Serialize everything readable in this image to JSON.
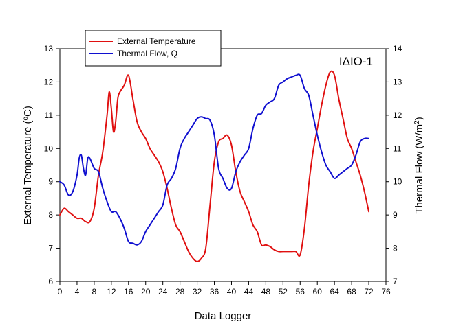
{
  "chart_data": {
    "type": "line",
    "title": "",
    "annotation": "IΔIO-1",
    "xlabel": "Data Logger",
    "ylabel_left": "External Temperature (",
    "ylabel_left_sup": "o",
    "ylabel_left_tail": "C)",
    "ylabel_right": "Thermal Flow (W/m",
    "ylabel_right_sup": "2",
    "ylabel_right_tail": ")",
    "xlim": [
      0,
      76
    ],
    "xticks": [
      0,
      4,
      8,
      12,
      16,
      20,
      24,
      28,
      32,
      36,
      40,
      44,
      48,
      52,
      56,
      60,
      64,
      68,
      72,
      76
    ],
    "ylim_left": [
      6,
      13
    ],
    "yticks_left": [
      6,
      7,
      8,
      9,
      10,
      11,
      12,
      13
    ],
    "ylim_right": [
      7,
      14
    ],
    "yticks_right": [
      7,
      8,
      9,
      10,
      11,
      12,
      13,
      14
    ],
    "grid": false,
    "legend_position": "top-left",
    "series": [
      {
        "name": "External Temperature",
        "axis": "left",
        "color": "#e01010",
        "x": [
          0,
          1,
          2,
          3,
          4,
          5,
          6,
          7,
          8,
          9,
          10,
          11,
          11.5,
          12,
          12.5,
          13,
          13.5,
          14,
          15,
          16,
          17,
          18,
          19,
          20,
          21,
          22,
          23,
          24,
          25,
          26,
          27,
          28,
          29,
          30,
          31,
          32,
          33,
          34,
          35,
          36,
          37,
          38,
          39,
          40,
          41,
          42,
          43,
          44,
          45,
          46,
          47,
          48,
          49,
          50,
          51,
          52,
          53,
          54,
          55,
          56,
          57,
          58,
          59,
          60,
          61,
          62,
          63,
          64,
          65,
          66,
          67,
          68,
          69,
          70,
          71,
          72
        ],
        "y": [
          8.0,
          8.2,
          8.1,
          8.0,
          7.9,
          7.9,
          7.8,
          7.8,
          8.2,
          9.2,
          9.9,
          11.0,
          11.7,
          11.2,
          10.5,
          10.8,
          11.5,
          11.7,
          11.9,
          12.2,
          11.5,
          10.8,
          10.5,
          10.3,
          10.0,
          9.8,
          9.6,
          9.3,
          8.8,
          8.2,
          7.7,
          7.5,
          7.2,
          6.9,
          6.7,
          6.6,
          6.7,
          7.0,
          8.3,
          9.6,
          10.2,
          10.3,
          10.4,
          10.1,
          9.3,
          8.7,
          8.4,
          8.1,
          7.7,
          7.5,
          7.1,
          7.1,
          7.05,
          6.95,
          6.9,
          6.9,
          6.9,
          6.9,
          6.9,
          6.8,
          7.6,
          8.9,
          9.9,
          10.6,
          11.3,
          11.9,
          12.3,
          12.2,
          11.5,
          10.9,
          10.3,
          10.0,
          9.6,
          9.2,
          8.7,
          8.1
        ]
      },
      {
        "name": "Thermal Flow, Q",
        "axis": "right",
        "color": "#1010d0",
        "x": [
          0,
          1,
          2,
          3,
          4,
          4.5,
          5,
          5.5,
          6,
          6.5,
          7,
          8,
          9,
          10,
          11,
          12,
          13,
          14,
          15,
          16,
          17,
          18,
          19,
          20,
          21,
          22,
          23,
          24,
          25,
          26,
          27,
          28,
          29,
          30,
          31,
          32,
          33,
          34,
          35,
          36,
          37,
          38,
          39,
          40,
          41,
          42,
          43,
          44,
          45,
          46,
          47,
          48,
          49,
          50,
          51,
          52,
          53,
          54,
          55,
          56,
          57,
          58,
          59,
          60,
          61,
          62,
          63,
          64,
          65,
          66,
          67,
          68,
          69,
          70,
          71,
          72
        ],
        "y": [
          10.0,
          9.9,
          9.6,
          9.7,
          10.2,
          10.7,
          10.8,
          10.4,
          10.2,
          10.7,
          10.7,
          10.4,
          10.3,
          9.8,
          9.4,
          9.1,
          9.1,
          8.9,
          8.6,
          8.2,
          8.15,
          8.1,
          8.2,
          8.5,
          8.7,
          8.9,
          9.1,
          9.3,
          9.9,
          10.1,
          10.4,
          11.0,
          11.3,
          11.5,
          11.7,
          11.9,
          11.95,
          11.9,
          11.85,
          11.4,
          10.4,
          10.1,
          9.8,
          9.8,
          10.3,
          10.6,
          10.8,
          11.0,
          11.6,
          12.0,
          12.05,
          12.3,
          12.4,
          12.5,
          12.9,
          13.0,
          13.1,
          13.15,
          13.2,
          13.2,
          12.8,
          12.6,
          12.0,
          11.4,
          10.9,
          10.5,
          10.3,
          10.1,
          10.2,
          10.3,
          10.4,
          10.5,
          10.8,
          11.2,
          11.3,
          11.3
        ]
      }
    ]
  }
}
